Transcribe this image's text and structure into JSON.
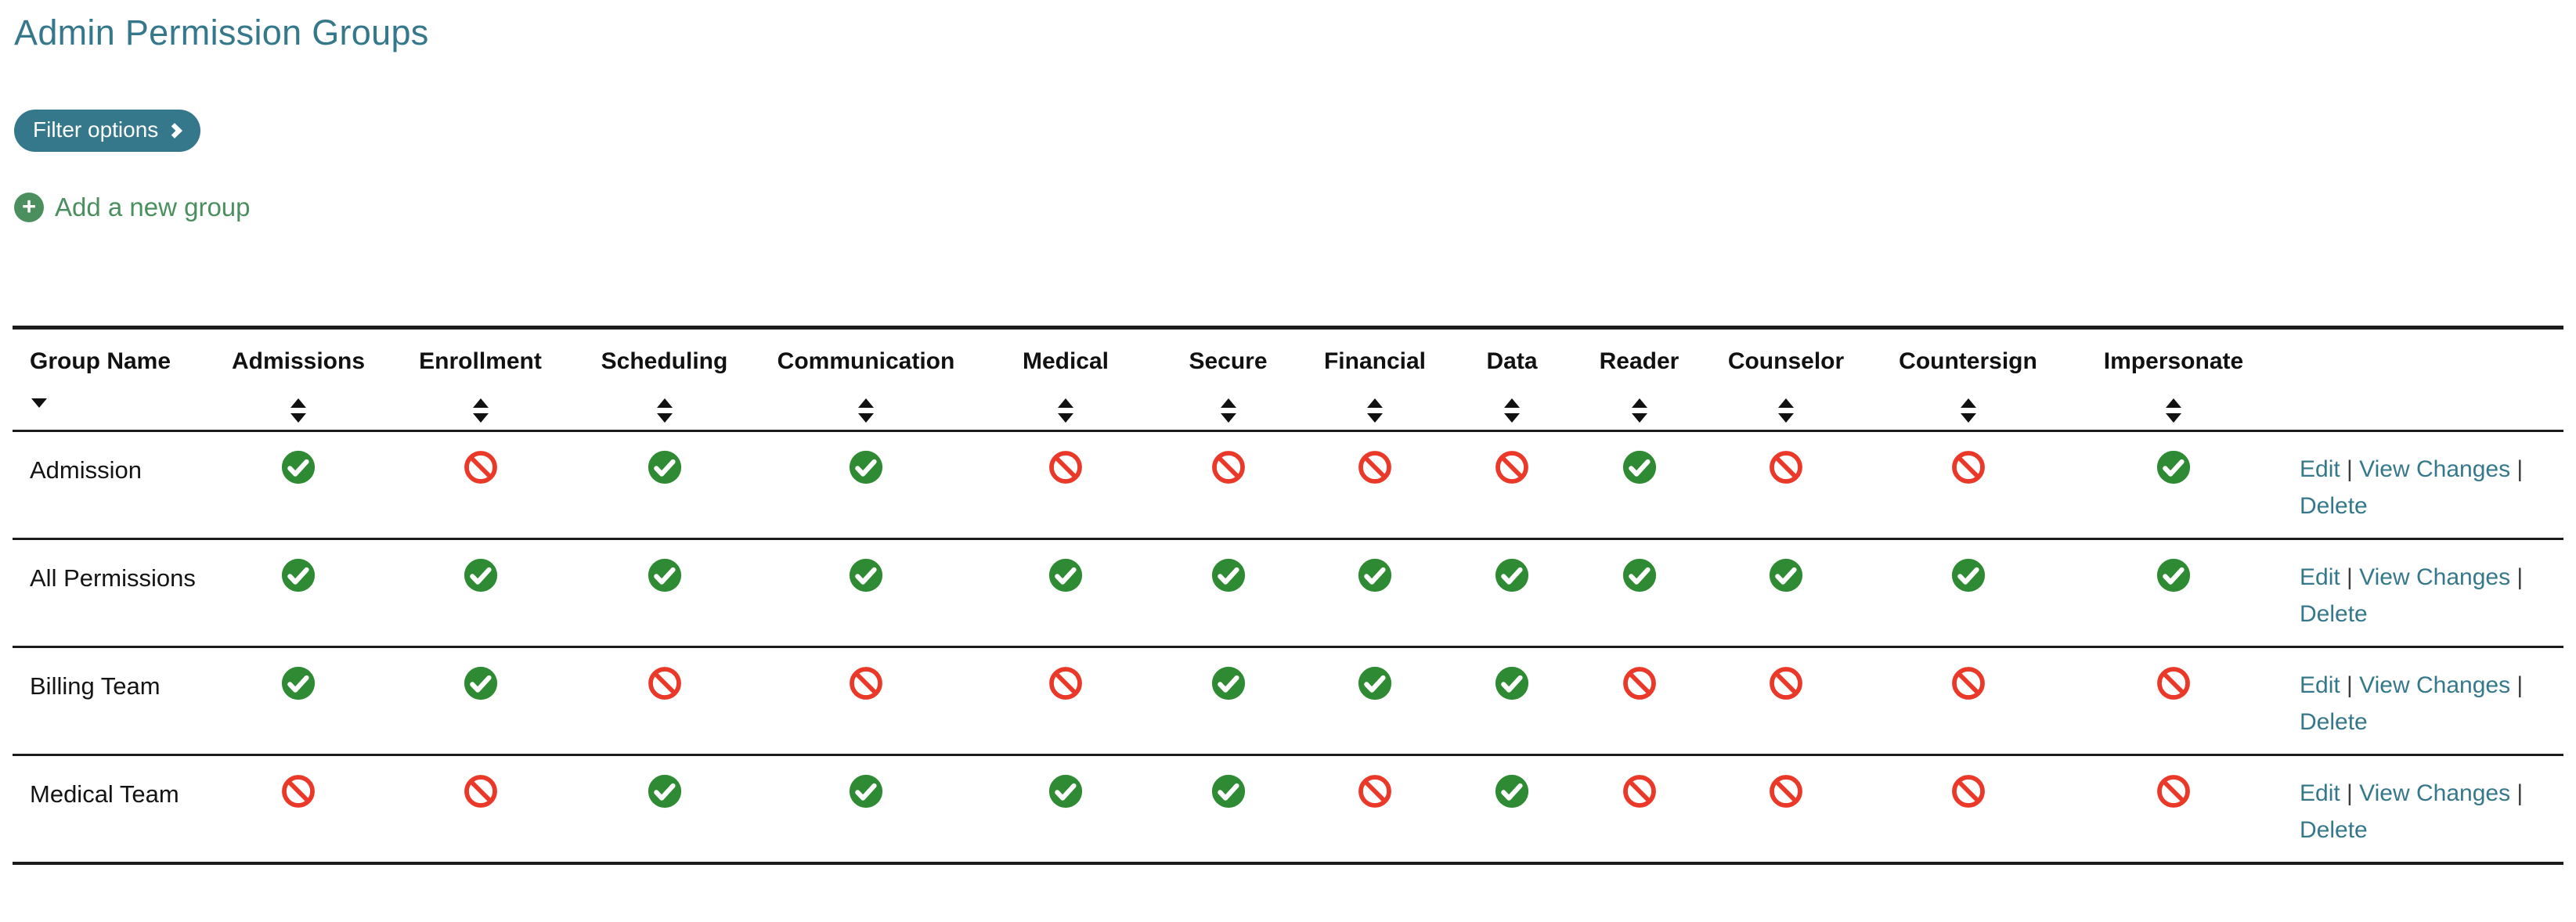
{
  "page": {
    "title": "Admin Permission Groups"
  },
  "toolbar": {
    "filter_button_label": "Filter options",
    "add_group_label": "Add a new group"
  },
  "colors": {
    "teal": "#36788b",
    "add_green": "#4b8f5f",
    "check_green": "#2f8a34",
    "deny_red": "#ea3829",
    "border_dark": "#1c1c1c"
  },
  "table": {
    "columns": [
      "Group Name",
      "Admissions",
      "Enrollment",
      "Scheduling",
      "Communication",
      "Medical",
      "Secure",
      "Financial",
      "Data",
      "Reader",
      "Counselor",
      "Countersign",
      "Impersonate"
    ],
    "sort": {
      "sorted_column": "Group Name",
      "sorted_direction": "desc"
    },
    "actions": [
      "Edit",
      "View Changes",
      "Delete"
    ],
    "action_separator": "|",
    "rows": [
      {
        "name": "Admission",
        "permissions": [
          true,
          false,
          true,
          true,
          false,
          false,
          false,
          false,
          true,
          false,
          false,
          true
        ]
      },
      {
        "name": "All Permissions",
        "permissions": [
          true,
          true,
          true,
          true,
          true,
          true,
          true,
          true,
          true,
          true,
          true,
          true
        ]
      },
      {
        "name": "Billing Team",
        "permissions": [
          true,
          true,
          false,
          false,
          false,
          true,
          true,
          true,
          false,
          false,
          false,
          false
        ]
      },
      {
        "name": "Medical Team",
        "permissions": [
          false,
          false,
          true,
          true,
          true,
          true,
          false,
          true,
          false,
          false,
          false,
          false
        ]
      }
    ]
  }
}
